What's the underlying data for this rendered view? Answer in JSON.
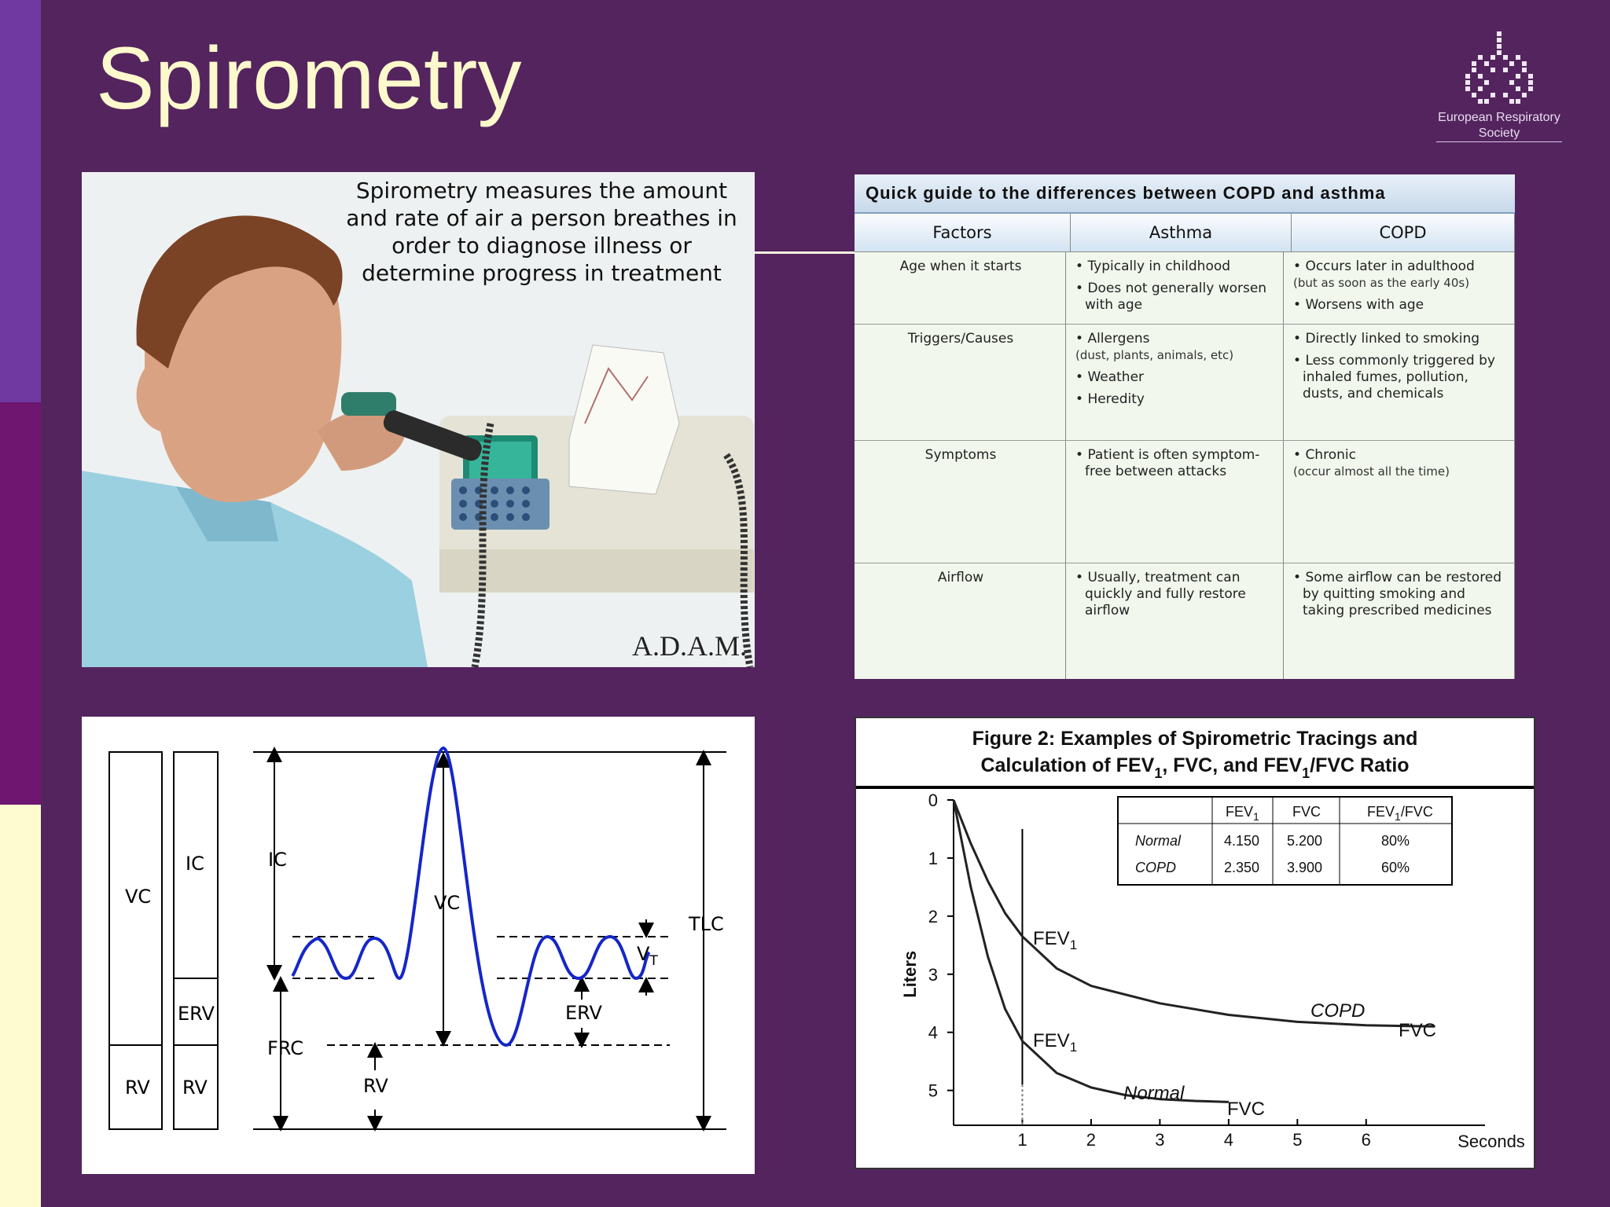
{
  "slide_title": "Spirometry",
  "logo": {
    "text": "European Respiratory Society",
    "icon": "lungs-icon"
  },
  "photo": {
    "caption": "Spirometry measures the amount and rate of air a person breathes in order to diagnose illness or determine progress in treatment",
    "credit": "A.D.A.M."
  },
  "quick_guide": {
    "title": "Quick guide to the differences between COPD and asthma",
    "headers": [
      "Factors",
      "Asthma",
      "COPD"
    ],
    "rows": [
      {
        "factor": "Age when it starts",
        "asthma": [
          {
            "t": "Typically in childhood"
          },
          {
            "t": "Does not generally worsen with age"
          }
        ],
        "copd": [
          {
            "t": "Occurs later in adulthood",
            "s": "(but as soon as the early 40s)"
          },
          {
            "t": "Worsens with age"
          }
        ]
      },
      {
        "factor": "Triggers/Causes",
        "asthma": [
          {
            "t": "Allergens",
            "s": "(dust, plants, animals, etc)"
          },
          {
            "t": "Weather"
          },
          {
            "t": "Heredity"
          }
        ],
        "copd": [
          {
            "t": "Directly linked to smoking"
          },
          {
            "t": "Less commonly triggered by inhaled fumes, pollution, dusts, and chemicals"
          }
        ]
      },
      {
        "factor": "Symptoms",
        "asthma": [
          {
            "t": "Patient is often symptom-free between attacks"
          }
        ],
        "copd": [
          {
            "t": "Chronic",
            "s": "(occur almost all the time)"
          }
        ]
      },
      {
        "factor": "Airflow",
        "asthma": [
          {
            "t": "Usually, treatment can quickly and fully restore airflow"
          }
        ],
        "copd": [
          {
            "t": "Some airflow can be restored by quitting smoking and taking prescribed medicines"
          }
        ]
      }
    ]
  },
  "volumes": {
    "bar1": {
      "top": "VC",
      "bottom": "RV"
    },
    "bar2": {
      "top": "IC",
      "mid": "ERV",
      "bottom": "RV"
    },
    "labels": {
      "ic": "IC",
      "vc": "VC",
      "tlc": "TLC",
      "vt": "V",
      "vt_sub": "T",
      "erv": "ERV",
      "frc": "FRC",
      "rv": "RV"
    }
  },
  "figure2": {
    "title_line1": "Figure 2: Examples of Spirometric Tracings and",
    "title_line2_parts": [
      "Calculation of FEV",
      "1",
      ", FVC, and FEV",
      "1",
      "/FVC Ratio"
    ],
    "table": {
      "headers": [
        {
          "t": "",
          "s": ""
        },
        {
          "t": "FEV",
          "s": "1"
        },
        {
          "t": "FVC",
          "s": ""
        },
        {
          "t": "FEV",
          "s": "1",
          "after": "/FVC"
        }
      ],
      "rows": [
        {
          "label": "Normal",
          "fev1": "4.150",
          "fvc": "5.200",
          "ratio": "80%"
        },
        {
          "label": "COPD",
          "fev1": "2.350",
          "fvc": "3.900",
          "ratio": "60%"
        }
      ]
    },
    "curve_labels": {
      "copd": "COPD",
      "normal": "Normal",
      "fvc": "FVC",
      "fev": "FEV",
      "fev_sub": "1"
    }
  },
  "chart_data": {
    "type": "line",
    "xlabel": "Seconds",
    "ylabel": "Liters",
    "x_ticks": [
      1,
      2,
      3,
      4,
      5,
      6
    ],
    "y_ticks": [
      0,
      1,
      2,
      3,
      4,
      5
    ],
    "xlim": [
      0,
      7.5
    ],
    "ylim": [
      0,
      5.6
    ],
    "y_inverted": true,
    "marker_x": 1,
    "series": [
      {
        "name": "Normal",
        "x": [
          0,
          0.25,
          0.5,
          0.75,
          1,
          1.5,
          2,
          2.5,
          3,
          3.5,
          4
        ],
        "y": [
          0,
          1.5,
          2.7,
          3.6,
          4.15,
          4.7,
          4.95,
          5.08,
          5.15,
          5.18,
          5.2
        ]
      },
      {
        "name": "COPD",
        "x": [
          0,
          0.25,
          0.5,
          0.75,
          1,
          1.5,
          2,
          3,
          4,
          5,
          6,
          7
        ],
        "y": [
          0,
          0.75,
          1.4,
          1.95,
          2.35,
          2.9,
          3.2,
          3.5,
          3.7,
          3.82,
          3.88,
          3.9
        ]
      }
    ]
  }
}
